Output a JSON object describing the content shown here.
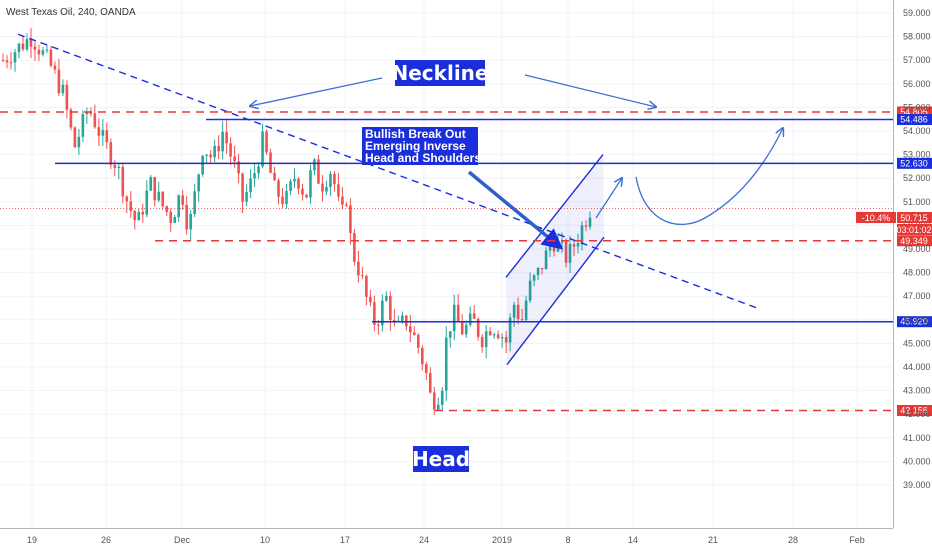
{
  "chart_data": {
    "type": "candlestick",
    "title": "West Texas Oil, 240, OANDA",
    "x_ticks": [
      "19",
      "26",
      "Dec",
      "10",
      "17",
      "24",
      "2019",
      "8",
      "14",
      "21",
      "28",
      "Feb"
    ],
    "y_ticks": [
      "39.000",
      "40.000",
      "41.000",
      "42.000",
      "43.000",
      "44.000",
      "45.000",
      "46.000",
      "47.000",
      "48.000",
      "49.000",
      "50.000",
      "51.000",
      "52.000",
      "53.000",
      "54.000",
      "55.000",
      "56.000",
      "57.000",
      "58.000",
      "59.000"
    ],
    "ylim": [
      38.2,
      59.4
    ],
    "price_path": [
      [
        0,
        57.0
      ],
      [
        2,
        58.0
      ],
      [
        3.3,
        56.8
      ],
      [
        4.2,
        55.6
      ],
      [
        5,
        53.3
      ],
      [
        6,
        55.0
      ],
      [
        7,
        53.6
      ],
      [
        8,
        52.5
      ],
      [
        8.7,
        51.0
      ],
      [
        9.4,
        50.0
      ],
      [
        10.3,
        51.8
      ],
      [
        11.2,
        50.8
      ],
      [
        11.8,
        50.3
      ],
      [
        12.5,
        51.5
      ],
      [
        13,
        49.8
      ],
      [
        13.3,
        50.8
      ],
      [
        14,
        53.4
      ],
      [
        14.7,
        52.8
      ],
      [
        15.4,
        54.0
      ],
      [
        16.2,
        52.5
      ],
      [
        16.8,
        51.0
      ],
      [
        17.5,
        52.0
      ],
      [
        18.2,
        53.6
      ],
      [
        19,
        51.5
      ],
      [
        19.8,
        51.0
      ],
      [
        20.5,
        52.2
      ],
      [
        21.2,
        51.2
      ],
      [
        21.7,
        52.6
      ],
      [
        22.3,
        51.7
      ],
      [
        23,
        52.4
      ],
      [
        23.7,
        50.2
      ],
      [
        24,
        51.5
      ],
      [
        24.4,
        49.0
      ],
      [
        25,
        48.0
      ],
      [
        25.6,
        46.5
      ],
      [
        26.1,
        45.8
      ],
      [
        26.8,
        47.0
      ],
      [
        27.5,
        45.5
      ],
      [
        28.2,
        46.0
      ],
      [
        29,
        45.0
      ],
      [
        29.6,
        43.8
      ],
      [
        30,
        42.5
      ],
      [
        30.7,
        43.0
      ],
      [
        31,
        45.0
      ],
      [
        31.5,
        46.3
      ],
      [
        32.2,
        45.5
      ],
      [
        32.9,
        46.0
      ],
      [
        33.5,
        45.2
      ],
      [
        34.2,
        45.8
      ],
      [
        34.8,
        45.5
      ],
      [
        35.3,
        45.0
      ],
      [
        35.7,
        46.8
      ],
      [
        36.3,
        45.9
      ],
      [
        36.8,
        47.3
      ],
      [
        37.5,
        48.0
      ],
      [
        38,
        48.7
      ],
      [
        38.5,
        49.4
      ],
      [
        39,
        49.0
      ],
      [
        39.5,
        48.6
      ],
      [
        40,
        49.2
      ],
      [
        40.6,
        50.0
      ],
      [
        41.1,
        50.7
      ]
    ],
    "levels": [
      {
        "label": "54.805",
        "value": 54.805,
        "color": "#e53935",
        "style": "dashed"
      },
      {
        "label": "54.486",
        "value": 54.486,
        "color": "#1a2edb",
        "style": "solid"
      },
      {
        "label": "52.630",
        "value": 52.63,
        "color": "#1a2edb",
        "style": "solid"
      },
      {
        "label": "49.349",
        "value": 49.349,
        "color": "#e53935",
        "style": "dashed"
      },
      {
        "label": "45.920",
        "value": 45.92,
        "color": "#1a2edb",
        "style": "solid"
      },
      {
        "label": "42.156",
        "value": 42.156,
        "color": "#e53935",
        "style": "dashed"
      }
    ],
    "current": {
      "change": "-10.4%",
      "price": "50.715",
      "countdown": "03:01:02",
      "value": 50.715
    },
    "annotations": {
      "neckline": "Neckline",
      "head": "Head",
      "breakout": [
        "Bullish Break Out",
        "Emerging Inverse",
        "Head and Shoulders"
      ]
    },
    "colors": {
      "up": "#26a69a",
      "down": "#ef5350",
      "line": "#1a2edb",
      "label": "#1a2edb",
      "current": "#e53935"
    }
  }
}
